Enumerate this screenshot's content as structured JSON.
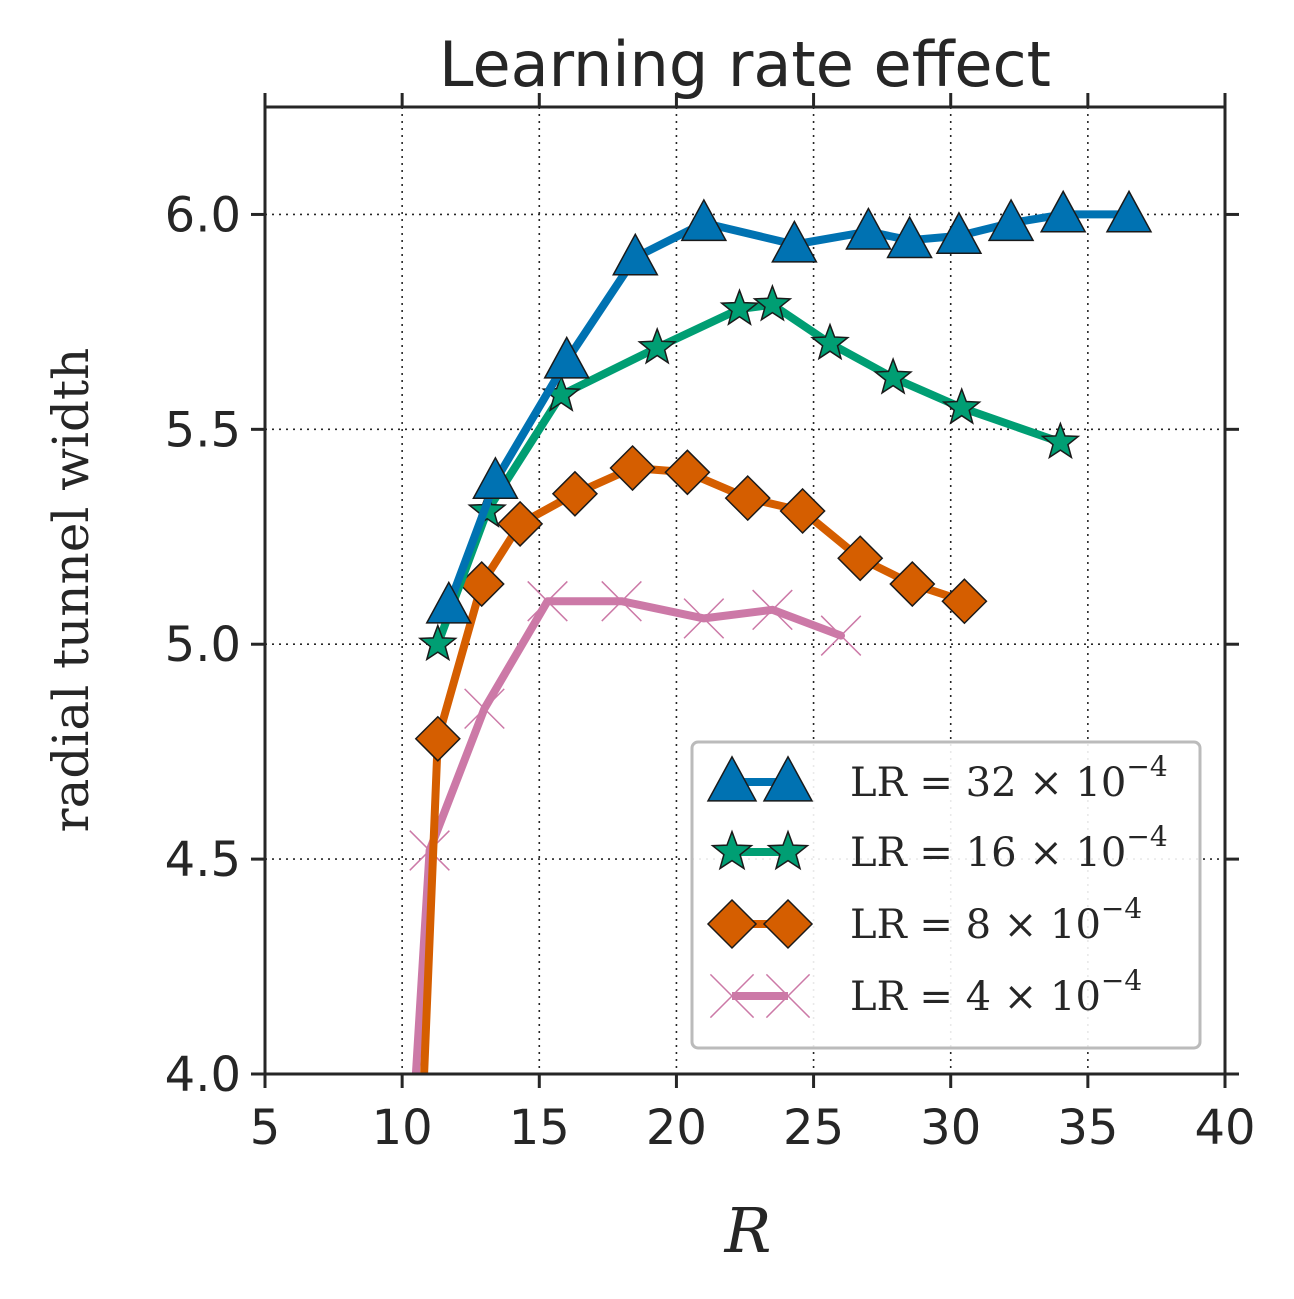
{
  "chart_data": {
    "type": "line",
    "title": "Learning rate effect",
    "xlabel": "R",
    "ylabel": "radial tunnel width",
    "xlim": [
      5,
      40
    ],
    "ylim": [
      4.0,
      6.25
    ],
    "xticks": [
      5,
      10,
      15,
      20,
      25,
      30,
      35,
      40
    ],
    "xtick_labels": [
      "5",
      "10",
      "15",
      "20",
      "25",
      "30",
      "35",
      "40"
    ],
    "yticks": [
      4.0,
      4.5,
      5.0,
      5.5,
      6.0
    ],
    "ytick_labels": [
      "4.0",
      "4.5",
      "5.0",
      "5.5",
      "6.0"
    ],
    "grid": true,
    "legend_position": "bottom-right",
    "series": [
      {
        "name": "LR = 32 × 10^-4",
        "legend_text": "LR = 32 × 10",
        "legend_exp": "−4",
        "color": "#0072B2",
        "marker": "triangle",
        "x": [
          11.7,
          13.4,
          16.0,
          18.5,
          21.0,
          24.3,
          27.0,
          28.5,
          30.3,
          32.2,
          34.1,
          36.5
        ],
        "y": [
          5.09,
          5.38,
          5.66,
          5.9,
          5.98,
          5.93,
          5.96,
          5.94,
          5.95,
          5.98,
          6.0,
          6.0
        ]
      },
      {
        "name": "LR = 16 × 10^-4",
        "legend_text": "LR = 16 × 10",
        "legend_exp": "−4",
        "color": "#009E73",
        "marker": "star",
        "x": [
          11.3,
          13.1,
          15.8,
          19.3,
          22.3,
          23.5,
          25.6,
          27.9,
          30.4,
          34.0
        ],
        "y": [
          5.0,
          5.31,
          5.58,
          5.69,
          5.78,
          5.79,
          5.7,
          5.62,
          5.55,
          5.47
        ]
      },
      {
        "name": "LR = 8 × 10^-4",
        "legend_text": "LR = 8 × 10",
        "legend_exp": "−4",
        "color": "#D55E00",
        "marker": "diamond",
        "x": [
          10.8,
          11.3,
          12.9,
          14.3,
          16.3,
          18.4,
          20.4,
          22.6,
          24.6,
          26.7,
          28.6,
          30.5
        ],
        "y": [
          4.0,
          4.78,
          5.14,
          5.28,
          5.35,
          5.41,
          5.4,
          5.34,
          5.31,
          5.2,
          5.14,
          5.1
        ]
      },
      {
        "name": "LR = 4 × 10^-4",
        "legend_text": "LR = 4 × 10",
        "legend_exp": "−4",
        "color": "#CC79A7",
        "marker": "x",
        "x": [
          10.5,
          11.0,
          13.0,
          15.3,
          18.0,
          21.0,
          23.5,
          26.0
        ],
        "y": [
          4.0,
          4.52,
          4.85,
          5.1,
          5.1,
          5.06,
          5.08,
          5.02
        ]
      }
    ]
  }
}
